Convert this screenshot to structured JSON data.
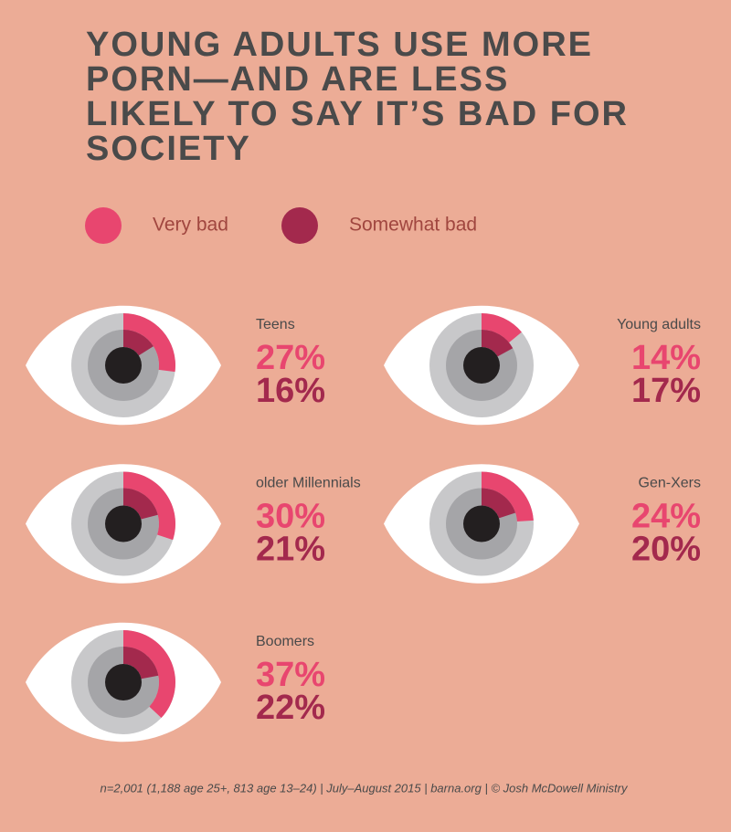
{
  "chart_data": {
    "type": "eye-rings",
    "title": "YOUNG ADULTS USE MORE PORN—AND ARE LESS LIKELY TO SAY IT’S BAD FOR SOCIETY",
    "categories": [
      "Teens",
      "Young adults",
      "older Millennials",
      "Gen-Xers",
      "Boomers"
    ],
    "series": [
      {
        "name": "Very bad",
        "color": "#e8466f",
        "values": [
          27,
          14,
          30,
          24,
          37
        ],
        "value_labels": [
          "27%",
          "14%",
          "30%",
          "24%",
          "37%"
        ]
      },
      {
        "name": "Somewhat bad",
        "color": "#a3294d",
        "values": [
          16,
          17,
          21,
          20,
          22
        ],
        "value_labels": [
          "16%",
          "17%",
          "21%",
          "20%",
          "22%"
        ]
      }
    ],
    "ylim": [
      0,
      100
    ],
    "source": "n=2,001 (1,188 age 25+, 813 age 13–24)  |  July–August 2015  |  barna.org  |  © Josh McDowell Ministry"
  }
}
